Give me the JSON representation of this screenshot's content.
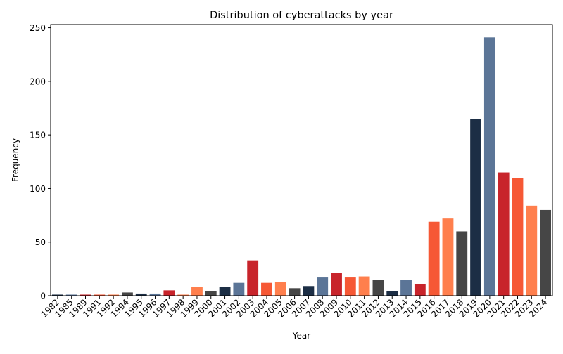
{
  "chart_data": {
    "type": "bar",
    "title": "Distribution of cyberattacks by year",
    "xlabel": "Year",
    "ylabel": "Frequency",
    "ylim": [
      0,
      253
    ],
    "yticks": [
      0,
      50,
      100,
      150,
      200,
      250
    ],
    "grid": false,
    "categories": [
      "1982",
      "1985",
      "1989",
      "1991",
      "1992",
      "1994",
      "1995",
      "1996",
      "1997",
      "1998",
      "1999",
      "2000",
      "2001",
      "2002",
      "2003",
      "2004",
      "2005",
      "2006",
      "2007",
      "2008",
      "2009",
      "2010",
      "2011",
      "2012",
      "2013",
      "2014",
      "2015",
      "2016",
      "2017",
      "2018",
      "2019",
      "2020",
      "2021",
      "2022",
      "2023",
      "2024"
    ],
    "values": [
      1,
      1,
      1,
      1,
      1,
      3,
      2,
      2,
      5,
      1,
      8,
      4,
      8,
      12,
      33,
      12,
      13,
      7,
      9,
      17,
      21,
      17,
      18,
      15,
      4,
      15,
      11,
      69,
      72,
      60,
      165,
      241,
      115,
      110,
      84,
      80
    ],
    "palette": [
      "#1c2e45",
      "#5b7597",
      "#c8242b",
      "#f65835",
      "#ff7f4d",
      "#464646"
    ],
    "bar_colors": [
      "#1c2e45",
      "#5b7597",
      "#c8242b",
      "#f65835",
      "#ff7f4d",
      "#464646",
      "#1c2e45",
      "#5b7597",
      "#c8242b",
      "#ff7f4d",
      "#ff7f4d",
      "#464646",
      "#1c2e45",
      "#5b7597",
      "#c8242b",
      "#f65835",
      "#ff7f4d",
      "#464646",
      "#1c2e45",
      "#5b7597",
      "#c8242b",
      "#f65835",
      "#ff7f4d",
      "#464646",
      "#1c2e45",
      "#5b7597",
      "#c8242b",
      "#f65835",
      "#ff7f4d",
      "#464646",
      "#1c2e45",
      "#5b7597",
      "#c8242b",
      "#f65835",
      "#ff7f4d",
      "#464646"
    ]
  }
}
